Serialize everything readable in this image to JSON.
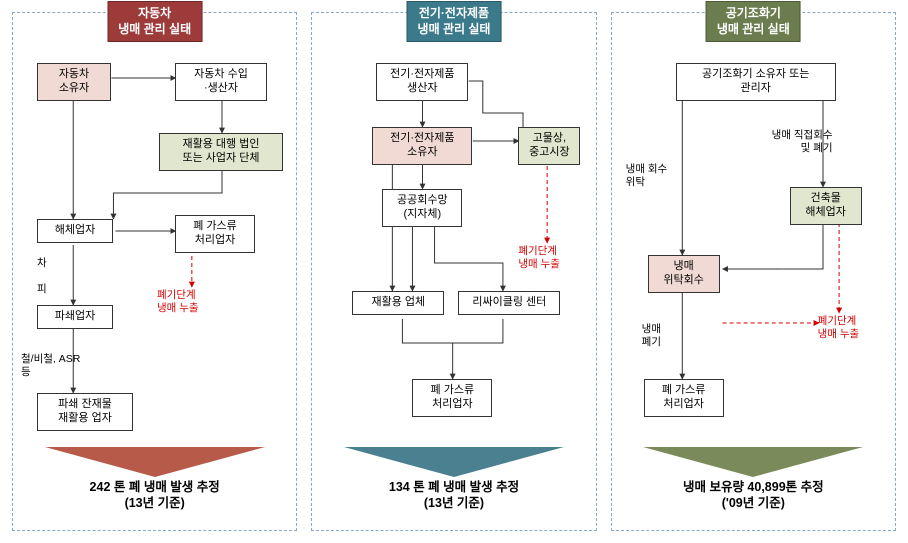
{
  "columns": [
    {
      "header_class": "hdr-red",
      "arrow_class": "red",
      "header_line1": "자동차",
      "header_line2": "냉매 관리 실태",
      "footer_line1": "242 톤 폐 냉매 발생 추정",
      "footer_line2": "(13년 기준)"
    },
    {
      "header_class": "hdr-blue",
      "arrow_class": "blue",
      "header_line1": "전기·전자제품",
      "header_line2": "냉매 관리 실태",
      "footer_line1": "134 톤 폐 냉매 발생 추정",
      "footer_line2": "(13년 기준)"
    },
    {
      "header_class": "hdr-green",
      "arrow_class": "green",
      "header_line1": "공기조화기",
      "header_line2": "냉매 관리 실태",
      "footer_line1": "냉매 보유량 40,899톤 추정",
      "footer_line2": "('09년 기준)"
    }
  ],
  "auto": {
    "owner": "자동차\n소유자",
    "importer": "자동차 수입\n·생산자",
    "recycle_corp": "재활용 대행 법인\n또는 사업자 단체",
    "dismantler": "해체업자",
    "wastegas": "폐 가스류\n처리업자",
    "crusher": "파쇄업자",
    "residue": "파쇄 잔재물\n재활용 업자",
    "lbl_cha": "차",
    "lbl_pi": "피",
    "lbl_iron": "철/비철, ASR\n등",
    "lbl_leak": "폐기단계\n냉매 누출"
  },
  "elec": {
    "producer": "전기·전자제품\n생산자",
    "owner": "전기·전자제품\n소유자",
    "junk": "고물상,\n중고시장",
    "public": "공공회수망\n(지자체)",
    "recycler": "재활용 업체",
    "center": "리싸이클링 센터",
    "wastegas": "폐 가스류\n처리업자",
    "lbl_leak": "폐기단계\n냉매 누출"
  },
  "ac": {
    "owner": "공기조화기 소유자 또는\n관리자",
    "demolish": "건축물\n해체업자",
    "entrust": "냉매\n위탁회수",
    "wastegas": "폐 가스류\n처리업자",
    "lbl_entrust": "냉매 회수\n위탁",
    "lbl_direct": "냉매 직접회수\n및 폐기",
    "lbl_dispose": "냉매\n폐기",
    "lbl_leak": "폐기단계\n냉매 누출"
  },
  "arrow_style": {
    "stroke": "#333",
    "dash_red": "#d40000"
  }
}
